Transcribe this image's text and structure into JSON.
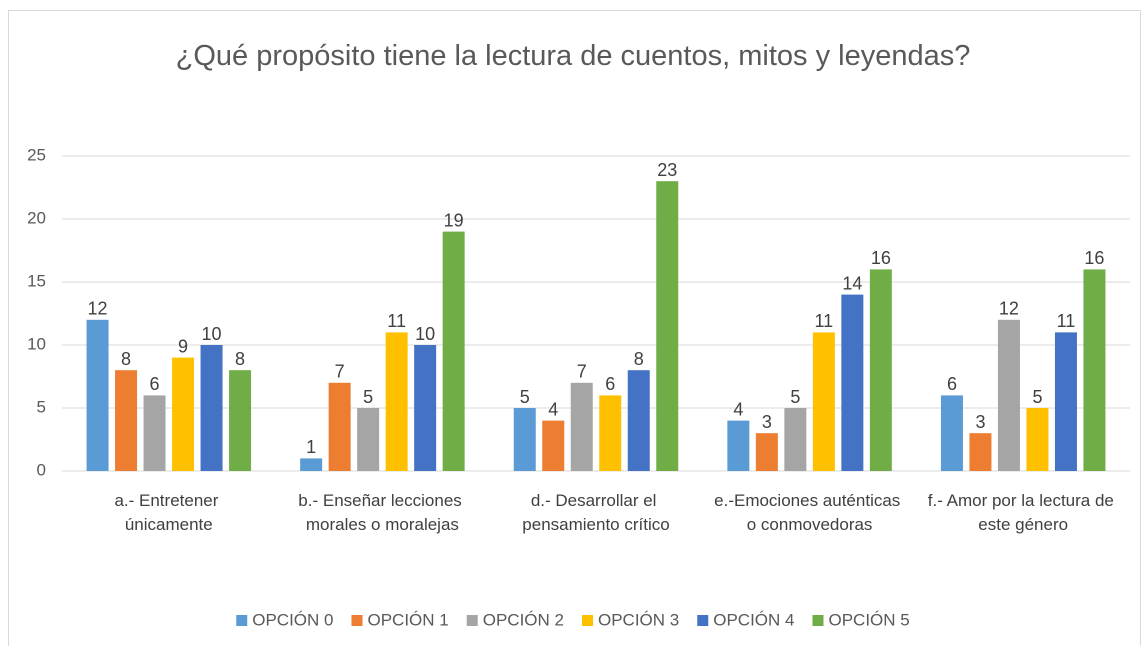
{
  "chart_data": {
    "type": "bar",
    "title": "¿Qué propósito tiene la lectura de cuentos, mitos y leyendas?",
    "categories": [
      "a.- Entretener únicamente",
      "b.- Enseñar lecciones morales o moralejas",
      "d.- Desarrollar el pensamiento crítico",
      "e.-Emociones auténticas o conmovedoras",
      "f.- Amor por la lectura de este género"
    ],
    "series": [
      {
        "name": "OPCIÓN 0",
        "color": "#5b9bd5",
        "values": [
          12,
          1,
          5,
          4,
          6
        ]
      },
      {
        "name": "OPCIÓN 1",
        "color": "#ed7d31",
        "values": [
          8,
          7,
          4,
          3,
          3
        ]
      },
      {
        "name": "OPCIÓN 2",
        "color": "#a5a5a5",
        "values": [
          6,
          5,
          7,
          5,
          12
        ]
      },
      {
        "name": "OPCIÓN 3",
        "color": "#ffc000",
        "values": [
          9,
          11,
          6,
          11,
          5
        ]
      },
      {
        "name": "OPCIÓN 4",
        "color": "#4472c4",
        "values": [
          10,
          10,
          8,
          14,
          11
        ]
      },
      {
        "name": "OPCIÓN 5",
        "color": "#70ad47",
        "values": [
          8,
          19,
          23,
          16,
          16
        ]
      }
    ],
    "ylim": [
      0,
      25
    ],
    "yticks": [
      0,
      5,
      10,
      15,
      20,
      25
    ],
    "grid": true,
    "legend": "bottom"
  }
}
